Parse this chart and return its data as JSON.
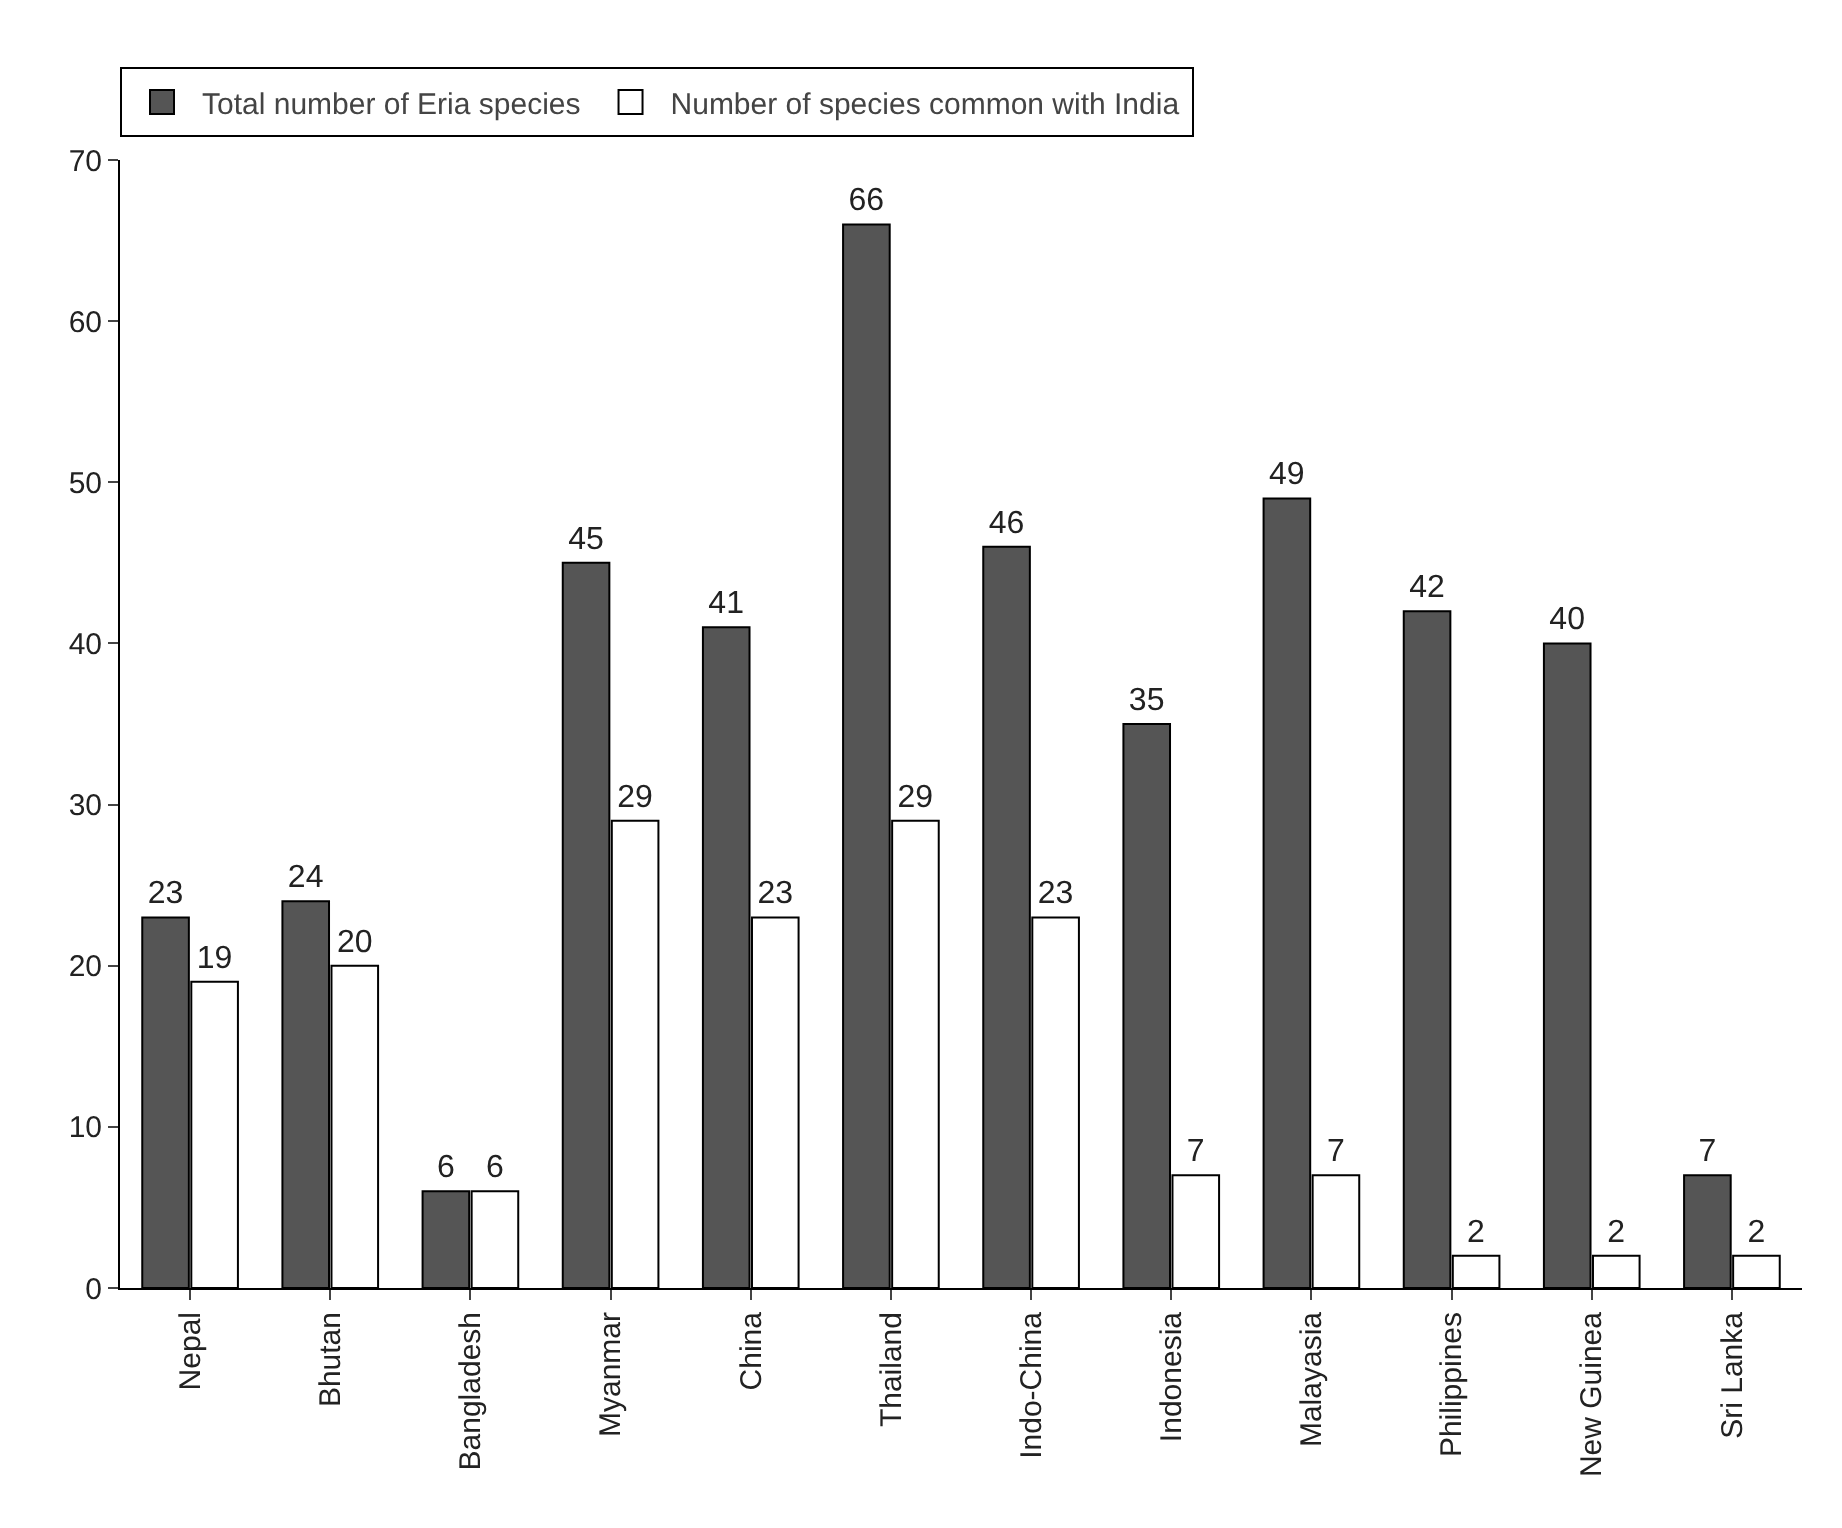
{
  "chart_data": {
    "type": "bar",
    "categories": [
      "Nepal",
      "Bhutan",
      "Bangladesh",
      "Myanmar",
      "China",
      "Thailand",
      "Indo-China",
      "Indonesia",
      "Malayasia",
      "Philippines",
      "New Guinea",
      "Sri Lanka"
    ],
    "series": [
      {
        "name": "Total number of Eria species",
        "color": "#555555",
        "values": [
          23,
          24,
          6,
          45,
          41,
          66,
          46,
          35,
          49,
          42,
          40,
          7
        ]
      },
      {
        "name": "Number of species common with India",
        "color": "#ffffff",
        "values": [
          19,
          20,
          6,
          29,
          23,
          29,
          23,
          7,
          7,
          2,
          2,
          2
        ]
      }
    ],
    "ylim": [
      0,
      70
    ],
    "yticks": [
      0,
      10,
      20,
      30,
      40,
      50,
      60,
      70
    ],
    "grid": false,
    "legend": "top left",
    "data_labels": true
  }
}
